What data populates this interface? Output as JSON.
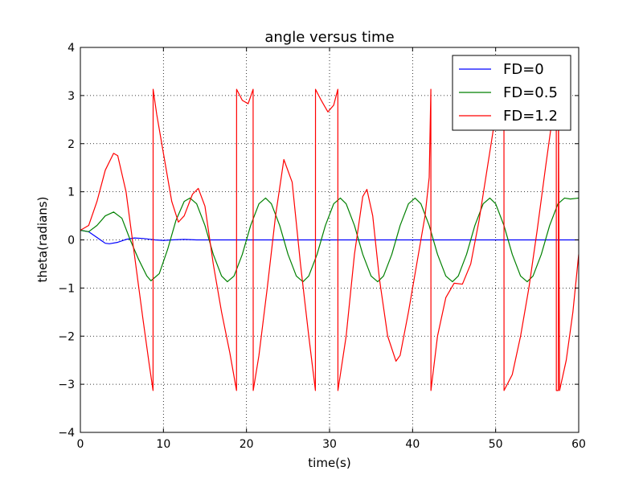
{
  "chart_data": {
    "type": "line",
    "title": "angle versus time",
    "xlabel": "time(s)",
    "ylabel": "theta(radians)",
    "xlim": [
      0,
      60
    ],
    "ylim": [
      -4,
      4
    ],
    "xticks": [
      0,
      10,
      20,
      30,
      40,
      50,
      60
    ],
    "yticks": [
      -4,
      -3,
      -2,
      -1,
      0,
      1,
      2,
      3,
      4
    ],
    "xtick_labels": [
      "0",
      "10",
      "20",
      "30",
      "40",
      "50",
      "60"
    ],
    "ytick_labels": [
      "−4",
      "−3",
      "−2",
      "−1",
      "0",
      "1",
      "2",
      "3",
      "4"
    ],
    "grid": true,
    "legend_position": "top-right",
    "series": [
      {
        "name": "FD=0",
        "color": "#0000ff",
        "points": [
          [
            0,
            0.2
          ],
          [
            1,
            0.17
          ],
          [
            2,
            0.05
          ],
          [
            3,
            -0.07
          ],
          [
            3.5,
            -0.08
          ],
          [
            4.5,
            -0.05
          ],
          [
            5.5,
            0.01
          ],
          [
            6.5,
            0.04
          ],
          [
            7.5,
            0.03
          ],
          [
            9,
            0.0
          ],
          [
            10,
            -0.01
          ],
          [
            11,
            0.0
          ],
          [
            12.5,
            0.01
          ],
          [
            14,
            0.0
          ],
          [
            16,
            0.0
          ],
          [
            20,
            0.0
          ],
          [
            30,
            0.0
          ],
          [
            40,
            0.0
          ],
          [
            50,
            0.0
          ],
          [
            60,
            0.0
          ]
        ]
      },
      {
        "name": "FD=0.5",
        "color": "#008000",
        "points": [
          [
            0,
            0.2
          ],
          [
            1,
            0.17
          ],
          [
            2,
            0.3
          ],
          [
            3,
            0.5
          ],
          [
            4,
            0.58
          ],
          [
            5,
            0.45
          ],
          [
            6,
            0.0
          ],
          [
            7,
            -0.4
          ],
          [
            8,
            -0.75
          ],
          [
            8.5,
            -0.85
          ],
          [
            9.5,
            -0.7
          ],
          [
            10.5,
            -0.2
          ],
          [
            11.5,
            0.4
          ],
          [
            12.5,
            0.8
          ],
          [
            13.2,
            0.87
          ],
          [
            14,
            0.75
          ],
          [
            15,
            0.3
          ],
          [
            16,
            -0.3
          ],
          [
            17,
            -0.75
          ],
          [
            17.7,
            -0.87
          ],
          [
            18.5,
            -0.75
          ],
          [
            19.5,
            -0.3
          ],
          [
            20.5,
            0.3
          ],
          [
            21.5,
            0.75
          ],
          [
            22.3,
            0.87
          ],
          [
            23,
            0.75
          ],
          [
            24,
            0.3
          ],
          [
            25,
            -0.3
          ],
          [
            26,
            -0.75
          ],
          [
            26.8,
            -0.87
          ],
          [
            27.5,
            -0.75
          ],
          [
            28.5,
            -0.3
          ],
          [
            29.5,
            0.3
          ],
          [
            30.5,
            0.75
          ],
          [
            31.3,
            0.87
          ],
          [
            32,
            0.75
          ],
          [
            33,
            0.3
          ],
          [
            34,
            -0.3
          ],
          [
            35,
            -0.75
          ],
          [
            35.8,
            -0.87
          ],
          [
            36.5,
            -0.75
          ],
          [
            37.5,
            -0.3
          ],
          [
            38.5,
            0.3
          ],
          [
            39.5,
            0.75
          ],
          [
            40.3,
            0.87
          ],
          [
            41,
            0.75
          ],
          [
            42,
            0.3
          ],
          [
            43,
            -0.3
          ],
          [
            44,
            -0.75
          ],
          [
            44.8,
            -0.87
          ],
          [
            45.5,
            -0.75
          ],
          [
            46.5,
            -0.3
          ],
          [
            47.5,
            0.3
          ],
          [
            48.5,
            0.75
          ],
          [
            49.3,
            0.87
          ],
          [
            50,
            0.75
          ],
          [
            51,
            0.3
          ],
          [
            52,
            -0.3
          ],
          [
            53,
            -0.75
          ],
          [
            53.8,
            -0.87
          ],
          [
            54.5,
            -0.75
          ],
          [
            55.5,
            -0.3
          ],
          [
            56.5,
            0.3
          ],
          [
            57.5,
            0.75
          ],
          [
            58.3,
            0.87
          ],
          [
            59,
            0.85
          ],
          [
            60,
            0.87
          ]
        ]
      },
      {
        "name": "FD=1.2",
        "color": "#ff0000",
        "points": [
          [
            0,
            0.2
          ],
          [
            1,
            0.3
          ],
          [
            2,
            0.8
          ],
          [
            3,
            1.45
          ],
          [
            4,
            1.8
          ],
          [
            4.5,
            1.75
          ],
          [
            5.5,
            1.0
          ],
          [
            6.5,
            -0.3
          ],
          [
            7.5,
            -1.6
          ],
          [
            8.3,
            -2.6
          ],
          [
            8.75,
            -3.13
          ],
          [
            8.76,
            3.13
          ],
          [
            9.2,
            2.6
          ],
          [
            10,
            1.8
          ],
          [
            11,
            0.8
          ],
          [
            11.8,
            0.37
          ],
          [
            12.5,
            0.5
          ],
          [
            13.5,
            0.95
          ],
          [
            14.2,
            1.07
          ],
          [
            15,
            0.7
          ],
          [
            16,
            -0.5
          ],
          [
            17,
            -1.5
          ],
          [
            18,
            -2.35
          ],
          [
            18.8,
            -3.13
          ],
          [
            18.81,
            3.13
          ],
          [
            19.5,
            2.9
          ],
          [
            20.2,
            2.83
          ],
          [
            20.8,
            3.13
          ],
          [
            20.81,
            -3.13
          ],
          [
            21.5,
            -2.4
          ],
          [
            22.5,
            -1.0
          ],
          [
            23.5,
            0.5
          ],
          [
            24.5,
            1.67
          ],
          [
            25.5,
            1.2
          ],
          [
            26.5,
            -0.5
          ],
          [
            27.5,
            -2.0
          ],
          [
            28.3,
            -3.13
          ],
          [
            28.31,
            3.13
          ],
          [
            29,
            2.9
          ],
          [
            29.8,
            2.66
          ],
          [
            30.5,
            2.8
          ],
          [
            31,
            3.13
          ],
          [
            31.01,
            -3.13
          ],
          [
            32,
            -2.0
          ],
          [
            33,
            -0.3
          ],
          [
            34,
            0.9
          ],
          [
            34.5,
            1.05
          ],
          [
            35.2,
            0.5
          ],
          [
            36,
            -0.8
          ],
          [
            37,
            -2.0
          ],
          [
            38,
            -2.52
          ],
          [
            38.5,
            -2.4
          ],
          [
            39.5,
            -1.5
          ],
          [
            40.5,
            -0.5
          ],
          [
            41.5,
            0.5
          ],
          [
            42,
            1.3
          ],
          [
            42.2,
            3.13
          ],
          [
            42.21,
            -3.13
          ],
          [
            43,
            -2.0
          ],
          [
            44,
            -1.2
          ],
          [
            45,
            -0.9
          ],
          [
            46,
            -0.92
          ],
          [
            47,
            -0.5
          ],
          [
            48,
            0.4
          ],
          [
            49,
            1.5
          ],
          [
            50,
            2.6
          ],
          [
            51,
            3.13
          ],
          [
            51.01,
            -3.13
          ],
          [
            52,
            -2.8
          ],
          [
            53,
            -2.0
          ],
          [
            54,
            -1.0
          ],
          [
            55,
            0.2
          ],
          [
            56,
            1.5
          ],
          [
            56.8,
            2.5
          ],
          [
            57.3,
            3.13
          ],
          [
            57.31,
            -3.13
          ],
          [
            57.55,
            -3.13
          ],
          [
            57.56,
            3.13
          ],
          [
            57.7,
            -3.13
          ],
          [
            58.5,
            -2.5
          ],
          [
            59.3,
            -1.5
          ],
          [
            60,
            -0.3
          ]
        ]
      }
    ]
  }
}
